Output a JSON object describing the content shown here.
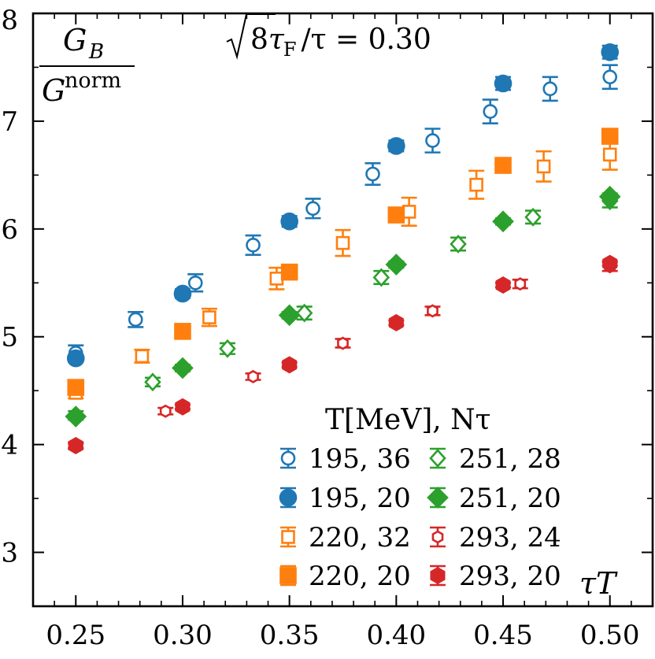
{
  "chart_data": {
    "type": "scatter",
    "title": "√8τF/τ = 0.30",
    "ylabel": {
      "numerator": "G_B",
      "denominator": "G^norm"
    },
    "xlabel": "τT",
    "xlim": [
      0.23,
      0.52
    ],
    "ylim": [
      2.5,
      8.0
    ],
    "xticks": [
      0.25,
      0.3,
      0.35,
      0.4,
      0.45,
      0.5
    ],
    "xtick_labels": [
      "0.25",
      "0.30",
      "0.35",
      "0.40",
      "0.45",
      "0.50"
    ],
    "yticks": [
      3,
      4,
      5,
      6,
      7,
      8
    ],
    "ytick_labels": [
      "3",
      "4",
      "5",
      "6",
      "7",
      "8"
    ],
    "legend_title": "T[MeV], Nτ",
    "legend_position": "bottom-right",
    "series": [
      {
        "name": "195, 36",
        "color": "#1f77b4",
        "marker": "circle",
        "filled": false,
        "x": [
          0.25,
          0.278,
          0.306,
          0.333,
          0.361,
          0.389,
          0.417,
          0.444,
          0.472,
          0.5
        ],
        "y": [
          4.85,
          5.16,
          5.5,
          5.85,
          6.19,
          6.51,
          6.82,
          7.09,
          7.3,
          7.41
        ],
        "err": [
          0.07,
          0.07,
          0.08,
          0.09,
          0.09,
          0.1,
          0.11,
          0.11,
          0.11,
          0.11
        ]
      },
      {
        "name": "195, 20",
        "color": "#1f77b4",
        "marker": "circle",
        "filled": true,
        "x": [
          0.25,
          0.3,
          0.35,
          0.4,
          0.45,
          0.5
        ],
        "y": [
          4.8,
          5.4,
          6.07,
          6.77,
          7.35,
          7.64
        ],
        "err": [
          0.03,
          0.04,
          0.05,
          0.05,
          0.06,
          0.06
        ]
      },
      {
        "name": "220, 32",
        "color": "#ff7f0e",
        "marker": "square",
        "filled": false,
        "x": [
          0.25,
          0.281,
          0.3125,
          0.344,
          0.375,
          0.406,
          0.4375,
          0.469,
          0.5
        ],
        "y": [
          4.48,
          4.82,
          5.18,
          5.54,
          5.87,
          6.16,
          6.41,
          6.58,
          6.69
        ],
        "err": [
          0.05,
          0.06,
          0.08,
          0.1,
          0.12,
          0.13,
          0.13,
          0.14,
          0.14
        ]
      },
      {
        "name": "220, 20",
        "color": "#ff7f0e",
        "marker": "square",
        "filled": true,
        "x": [
          0.25,
          0.3,
          0.35,
          0.4,
          0.45,
          0.5
        ],
        "y": [
          4.53,
          5.05,
          5.6,
          6.13,
          6.59,
          6.86
        ],
        "err": [
          0.03,
          0.03,
          0.04,
          0.05,
          0.05,
          0.05
        ]
      },
      {
        "name": "251, 28",
        "color": "#2ca02c",
        "marker": "diamond",
        "filled": false,
        "x": [
          0.25,
          0.286,
          0.321,
          0.357,
          0.393,
          0.429,
          0.464,
          0.5
        ],
        "y": [
          4.27,
          4.58,
          4.89,
          5.22,
          5.55,
          5.86,
          6.11,
          6.26
        ],
        "err": [
          0.04,
          0.04,
          0.05,
          0.06,
          0.06,
          0.06,
          0.06,
          0.06
        ]
      },
      {
        "name": "251, 20",
        "color": "#2ca02c",
        "marker": "diamond",
        "filled": true,
        "x": [
          0.25,
          0.3,
          0.35,
          0.4,
          0.45,
          0.5
        ],
        "y": [
          4.26,
          4.71,
          5.2,
          5.67,
          6.07,
          6.3
        ],
        "err": [
          0.02,
          0.03,
          0.03,
          0.03,
          0.03,
          0.03
        ]
      },
      {
        "name": "293, 24",
        "color": "#d62728",
        "marker": "hexagon",
        "filled": false,
        "x": [
          0.25,
          0.292,
          0.333,
          0.375,
          0.417,
          0.458,
          0.5
        ],
        "y": [
          3.99,
          4.31,
          4.63,
          4.94,
          5.24,
          5.49,
          5.65
        ],
        "err": [
          0.03,
          0.03,
          0.03,
          0.04,
          0.04,
          0.04,
          0.04
        ]
      },
      {
        "name": "293, 20",
        "color": "#d62728",
        "marker": "hexagon",
        "filled": true,
        "x": [
          0.25,
          0.3,
          0.35,
          0.4,
          0.45,
          0.5
        ],
        "y": [
          3.99,
          4.35,
          4.74,
          5.13,
          5.48,
          5.68
        ],
        "err": [
          0.02,
          0.02,
          0.02,
          0.02,
          0.02,
          0.02
        ]
      }
    ]
  }
}
